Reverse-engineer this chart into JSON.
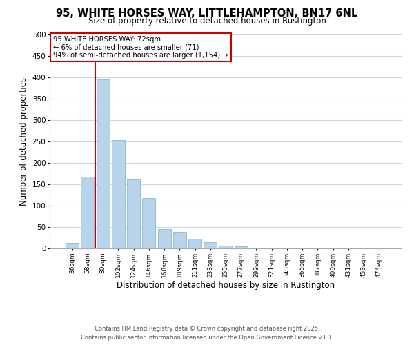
{
  "title": "95, WHITE HORSES WAY, LITTLEHAMPTON, BN17 6NL",
  "subtitle": "Size of property relative to detached houses in Rustington",
  "bar_labels": [
    "36sqm",
    "58sqm",
    "80sqm",
    "102sqm",
    "124sqm",
    "146sqm",
    "168sqm",
    "189sqm",
    "211sqm",
    "233sqm",
    "255sqm",
    "277sqm",
    "299sqm",
    "321sqm",
    "343sqm",
    "365sqm",
    "387sqm",
    "409sqm",
    "431sqm",
    "453sqm",
    "474sqm"
  ],
  "bar_values": [
    13,
    168,
    395,
    254,
    161,
    117,
    45,
    38,
    22,
    15,
    7,
    5,
    2,
    1,
    0,
    0,
    0,
    0,
    0,
    0,
    0
  ],
  "bar_color": "#b8d4eb",
  "bar_edge_color": "#7aaed0",
  "xlabel": "Distribution of detached houses by size in Rustington",
  "ylabel": "Number of detached properties",
  "ylim": [
    0,
    500
  ],
  "yticks": [
    0,
    50,
    100,
    150,
    200,
    250,
    300,
    350,
    400,
    450,
    500
  ],
  "property_line_label": "95 WHITE HORSES WAY: 72sqm",
  "annotation_line1": "← 6% of detached houses are smaller (71)",
  "annotation_line2": "94% of semi-detached houses are larger (1,154) →",
  "annotation_box_color": "#ffffff",
  "annotation_box_edge": "#cc0000",
  "vline_color": "#cc0000",
  "vline_x": 1.5,
  "footer_line1": "Contains HM Land Registry data © Crown copyright and database right 2025.",
  "footer_line2": "Contains public sector information licensed under the Open Government Licence v3.0.",
  "bg_color": "#ffffff",
  "grid_color": "#c8d8e8",
  "title_fontsize": 10.5,
  "subtitle_fontsize": 8.5,
  "xlabel_fontsize": 8.5,
  "ylabel_fontsize": 8.5
}
